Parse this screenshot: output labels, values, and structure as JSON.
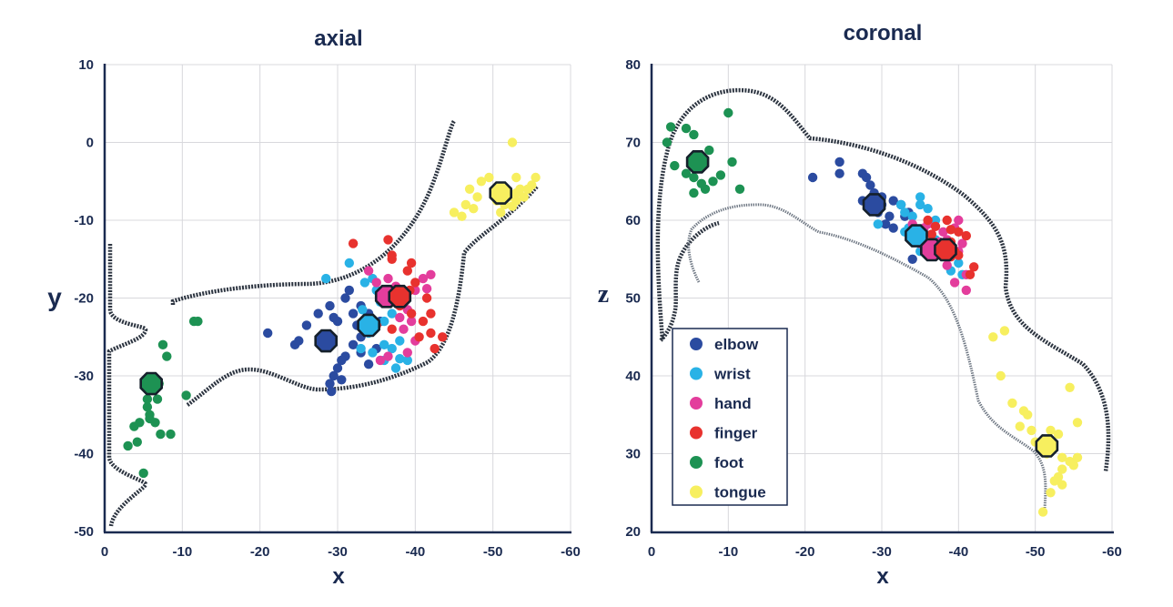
{
  "colors": {
    "elbow": "#2b4ba0",
    "wrist": "#29b2e6",
    "hand": "#e33d9c",
    "finger": "#e8322e",
    "foot": "#1d9253",
    "tongue": "#f7ef5f",
    "text": "#1a2a50"
  },
  "legend": {
    "placement": "left-center of coronal panel",
    "items": [
      {
        "key": "elbow",
        "label": "elbow"
      },
      {
        "key": "wrist",
        "label": "wrist"
      },
      {
        "key": "hand",
        "label": "hand"
      },
      {
        "key": "finger",
        "label": "finger"
      },
      {
        "key": "foot",
        "label": "foot"
      },
      {
        "key": "tongue",
        "label": "tongue"
      }
    ]
  },
  "chart_data": [
    {
      "type": "scatter",
      "title": "axial",
      "xlabel": "x",
      "ylabel": "y",
      "xlim": [
        0,
        -60
      ],
      "ylim": [
        -50,
        10
      ],
      "xticks": [
        "0",
        "-10",
        "-20",
        "-30",
        "-40",
        "-50",
        "-60"
      ],
      "yticks": [
        "-50",
        "-40",
        "-30",
        "-20",
        "-10",
        "0",
        "10"
      ],
      "grid": true,
      "means": [
        {
          "series": "foot",
          "x": -6,
          "y": -31
        },
        {
          "series": "elbow",
          "x": -28.5,
          "y": -25.5
        },
        {
          "series": "wrist",
          "x": -34,
          "y": -23.5
        },
        {
          "series": "hand",
          "x": -36.3,
          "y": -19.8
        },
        {
          "series": "finger",
          "x": -38,
          "y": -19.8
        },
        {
          "series": "tongue",
          "x": -51,
          "y": -6.5
        }
      ],
      "series": [
        {
          "key": "foot",
          "points": [
            [
              -11.5,
              -23
            ],
            [
              -12,
              -23
            ],
            [
              -7.5,
              -26
            ],
            [
              -8,
              -27.5
            ],
            [
              -7,
              -31
            ],
            [
              -6.8,
              -33
            ],
            [
              -5.5,
              -33
            ],
            [
              -5.5,
              -34
            ],
            [
              -5.8,
              -35.5
            ],
            [
              -4.5,
              -36
            ],
            [
              -6.5,
              -36
            ],
            [
              -3.8,
              -36.5
            ],
            [
              -7.2,
              -37.5
            ],
            [
              -8.5,
              -37.5
            ],
            [
              -4.2,
              -38.5
            ],
            [
              -3,
              -39
            ],
            [
              -5.8,
              -35
            ],
            [
              -10.5,
              -32.5
            ],
            [
              -5,
              -42.5
            ]
          ]
        },
        {
          "key": "elbow",
          "points": [
            [
              -21,
              -24.5
            ],
            [
              -24.5,
              -26
            ],
            [
              -25,
              -25.5
            ],
            [
              -26,
              -23.5
            ],
            [
              -27.5,
              -22
            ],
            [
              -29,
              -21
            ],
            [
              -29.5,
              -22.5
            ],
            [
              -30,
              -23
            ],
            [
              -31,
              -20
            ],
            [
              -31.5,
              -19
            ],
            [
              -32,
              -22
            ],
            [
              -32.5,
              -23.5
            ],
            [
              -33,
              -21
            ],
            [
              -33,
              -25
            ],
            [
              -31,
              -27.5
            ],
            [
              -30.5,
              -28
            ],
            [
              -30,
              -29
            ],
            [
              -29.5,
              -30
            ],
            [
              -29,
              -31
            ],
            [
              -29.2,
              -32
            ],
            [
              -30.5,
              -30.5
            ],
            [
              -32,
              -26
            ],
            [
              -33,
              -27
            ],
            [
              -34,
              -28.5
            ],
            [
              -35,
              -26.5
            ],
            [
              -34,
              -22
            ],
            [
              -35.5,
              -23
            ]
          ]
        },
        {
          "key": "wrist",
          "points": [
            [
              -28.5,
              -17.5
            ],
            [
              -31.5,
              -15.5
            ],
            [
              -33.5,
              -18
            ],
            [
              -34.5,
              -17.5
            ],
            [
              -35,
              -19
            ],
            [
              -33.2,
              -21.5
            ],
            [
              -36,
              -23
            ],
            [
              -37,
              -22
            ],
            [
              -34,
              -24.5
            ],
            [
              -36,
              -26
            ],
            [
              -37,
              -26.5
            ],
            [
              -38,
              -25.5
            ],
            [
              -36,
              -28
            ],
            [
              -37.5,
              -29
            ],
            [
              -38,
              -27.8
            ],
            [
              -39,
              -28
            ],
            [
              -34.5,
              -27
            ],
            [
              -35.5,
              -20.5
            ],
            [
              -33,
              -26.5
            ]
          ]
        },
        {
          "key": "hand",
          "points": [
            [
              -34,
              -16.5
            ],
            [
              -35,
              -18
            ],
            [
              -36.5,
              -17.5
            ],
            [
              -37.5,
              -18.5
            ],
            [
              -38,
              -20
            ],
            [
              -39,
              -21.5
            ],
            [
              -40,
              -19
            ],
            [
              -41,
              -17.5
            ],
            [
              -42,
              -17
            ],
            [
              -41.5,
              -18.8
            ],
            [
              -39.5,
              -23
            ],
            [
              -38.5,
              -24
            ],
            [
              -40,
              -25.5
            ],
            [
              -39,
              -27
            ],
            [
              -35.5,
              -28
            ],
            [
              -36.5,
              -27.5
            ],
            [
              -38,
              -22.5
            ]
          ]
        },
        {
          "key": "finger",
          "points": [
            [
              -32,
              -13
            ],
            [
              -36.5,
              -12.5
            ],
            [
              -37,
              -14.5
            ],
            [
              -37,
              -15
            ],
            [
              -39,
              -16.5
            ],
            [
              -39.5,
              -15.5
            ],
            [
              -40,
              -18
            ],
            [
              -39.3,
              -19
            ],
            [
              -38.6,
              -20.2
            ],
            [
              -38,
              -21
            ],
            [
              -41.5,
              -20
            ],
            [
              -42,
              -22
            ],
            [
              -41,
              -23
            ],
            [
              -42,
              -24.5
            ],
            [
              -43.5,
              -25
            ],
            [
              -42.5,
              -26.5
            ],
            [
              -40.5,
              -25
            ],
            [
              -37,
              -24
            ],
            [
              -35,
              -23.5
            ],
            [
              -39.5,
              -22
            ]
          ]
        },
        {
          "key": "tongue",
          "points": [
            [
              -52.5,
              0
            ],
            [
              -53,
              -4.5
            ],
            [
              -55.5,
              -4.5
            ],
            [
              -55,
              -5.5
            ],
            [
              -54,
              -7
            ],
            [
              -54.5,
              -6
            ],
            [
              -53,
              -6.5
            ],
            [
              -53,
              -7.5
            ],
            [
              -52,
              -7
            ],
            [
              -52.5,
              -8.2
            ],
            [
              -51,
              -9
            ],
            [
              -51.5,
              -8
            ],
            [
              -50.5,
              -7.5
            ],
            [
              -49.5,
              -4.5
            ],
            [
              -48.5,
              -5
            ],
            [
              -47,
              -6
            ],
            [
              -48,
              -7
            ],
            [
              -46.5,
              -8
            ],
            [
              -47.5,
              -8.5
            ],
            [
              -45,
              -9
            ],
            [
              -46,
              -9.5
            ],
            [
              -53.5,
              -6
            ]
          ]
        }
      ]
    },
    {
      "type": "scatter",
      "title": "coronal",
      "xlabel": "x",
      "ylabel": "z",
      "xlim": [
        0,
        -60
      ],
      "ylim": [
        20,
        80
      ],
      "xticks": [
        "0",
        "-10",
        "-20",
        "-30",
        "-40",
        "-50",
        "-60"
      ],
      "yticks": [
        "20",
        "30",
        "40",
        "50",
        "60",
        "70",
        "80"
      ],
      "grid": true,
      "means": [
        {
          "series": "foot",
          "x": -6,
          "y": 67.5
        },
        {
          "series": "elbow",
          "x": -29,
          "y": 62
        },
        {
          "series": "wrist",
          "x": -34.5,
          "y": 58
        },
        {
          "series": "hand",
          "x": -36.5,
          "y": 56.2
        },
        {
          "series": "finger",
          "x": -38.3,
          "y": 56.2
        },
        {
          "series": "tongue",
          "x": -51.5,
          "y": 31
        }
      ],
      "series": [
        {
          "key": "foot",
          "points": [
            [
              -2.5,
              72
            ],
            [
              -4.5,
              71.8
            ],
            [
              -5.5,
              71
            ],
            [
              -10,
              73.8
            ],
            [
              -2,
              70
            ],
            [
              -7.5,
              69
            ],
            [
              -3,
              67
            ],
            [
              -4.5,
              66
            ],
            [
              -5.5,
              65.5
            ],
            [
              -6.5,
              64.7
            ],
            [
              -5.5,
              63.5
            ],
            [
              -7,
              64
            ],
            [
              -8,
              65
            ],
            [
              -9,
              65.8
            ],
            [
              -11.5,
              64
            ],
            [
              -10.5,
              67.5
            ]
          ]
        },
        {
          "key": "elbow",
          "points": [
            [
              -21,
              65.5
            ],
            [
              -24.5,
              66
            ],
            [
              -24.5,
              67.5
            ],
            [
              -27.5,
              66
            ],
            [
              -28,
              65.5
            ],
            [
              -28.5,
              64.5
            ],
            [
              -27.5,
              62.5
            ],
            [
              -29,
              63.5
            ],
            [
              -30,
              63
            ],
            [
              -30,
              62
            ],
            [
              -29.5,
              61
            ],
            [
              -31,
              60.5
            ],
            [
              -31.5,
              59
            ],
            [
              -30.5,
              59.5
            ],
            [
              -32.5,
              62
            ],
            [
              -33,
              60.5
            ],
            [
              -33.5,
              61
            ],
            [
              -34,
              55
            ],
            [
              -31.5,
              62.5
            ]
          ]
        },
        {
          "key": "wrist",
          "points": [
            [
              -32.5,
              62
            ],
            [
              -33,
              61
            ],
            [
              -35,
              62
            ],
            [
              -36,
              61.5
            ],
            [
              -37,
              60
            ],
            [
              -34,
              60.5
            ],
            [
              -33.5,
              59
            ],
            [
              -29.5,
              59.5
            ],
            [
              -33,
              58.5
            ],
            [
              -36,
              57
            ],
            [
              -37,
              57.5
            ],
            [
              -35,
              56
            ],
            [
              -39,
              55.5
            ],
            [
              -38.5,
              56.5
            ],
            [
              -40,
              54.5
            ],
            [
              -39,
              53.5
            ],
            [
              -40.5,
              53
            ],
            [
              -35,
              63
            ]
          ]
        },
        {
          "key": "hand",
          "points": [
            [
              -34,
              59.5
            ],
            [
              -35.5,
              59
            ],
            [
              -36,
              59.5
            ],
            [
              -38,
              58.5
            ],
            [
              -37.5,
              57.2
            ],
            [
              -38.5,
              57.5
            ],
            [
              -40,
              56
            ],
            [
              -40.5,
              57
            ],
            [
              -39.5,
              59
            ],
            [
              -40,
              60
            ],
            [
              -41,
              53
            ],
            [
              -41,
              51
            ],
            [
              -39.5,
              52
            ],
            [
              -38.5,
              54.2
            ],
            [
              -35,
              57
            ]
          ]
        },
        {
          "key": "finger",
          "points": [
            [
              -36,
              60
            ],
            [
              -37,
              59.2
            ],
            [
              -38.5,
              60
            ],
            [
              -39,
              58.8
            ],
            [
              -40,
              58.5
            ],
            [
              -41,
              58
            ],
            [
              -39.5,
              56
            ],
            [
              -38,
              55.5
            ],
            [
              -39,
              55.3
            ],
            [
              -40,
              55.5
            ],
            [
              -42,
              54
            ],
            [
              -41.5,
              53
            ],
            [
              -39,
              57.2
            ],
            [
              -36.5,
              58.2
            ]
          ]
        },
        {
          "key": "tongue",
          "points": [
            [
              -44.5,
              45
            ],
            [
              -46,
              45.8
            ],
            [
              -45.5,
              40
            ],
            [
              -47,
              36.5
            ],
            [
              -48.5,
              35.5
            ],
            [
              -49,
              35
            ],
            [
              -48,
              33.5
            ],
            [
              -49.5,
              33
            ],
            [
              -50,
              31.5
            ],
            [
              -51.5,
              30
            ],
            [
              -52,
              33
            ],
            [
              -53,
              32.5
            ],
            [
              -54.5,
              38.5
            ],
            [
              -55.5,
              34
            ],
            [
              -53.5,
              29.5
            ],
            [
              -54.5,
              29
            ],
            [
              -55,
              28.5
            ],
            [
              -55.5,
              29.5
            ],
            [
              -53.5,
              28
            ],
            [
              -53,
              27
            ],
            [
              -53.5,
              26
            ],
            [
              -52,
              25
            ],
            [
              -52.5,
              26.5
            ],
            [
              -51,
              22.5
            ]
          ]
        }
      ]
    }
  ]
}
